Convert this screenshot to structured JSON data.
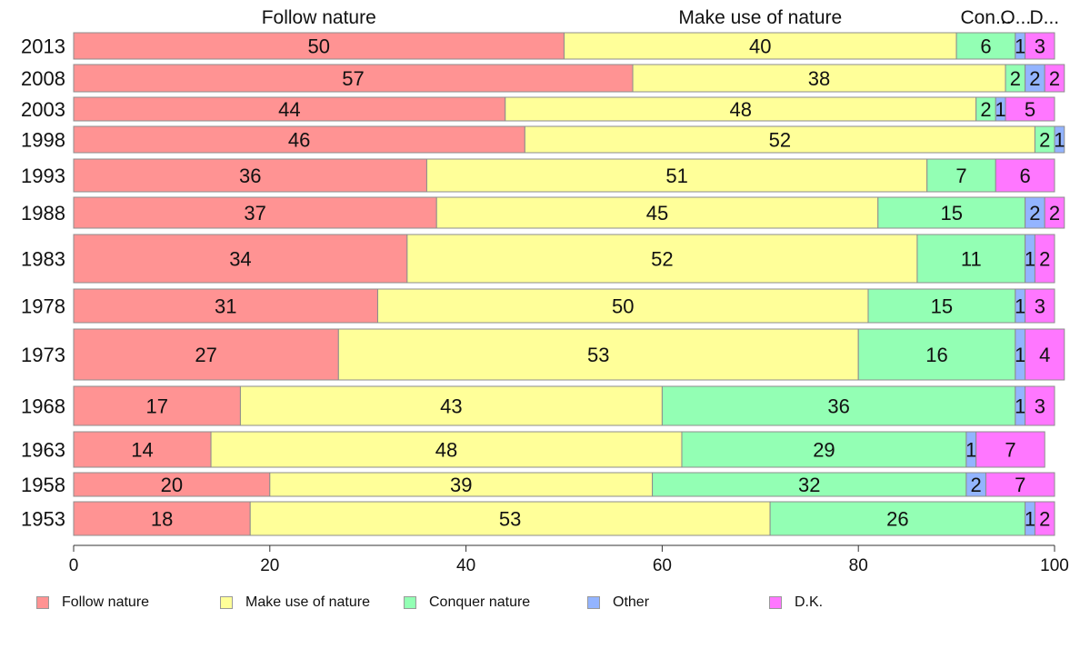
{
  "chart_data": {
    "type": "bar",
    "orientation": "horizontal",
    "stacked": true,
    "title": "",
    "xlabel": "",
    "ylabel": "",
    "xlim": [
      0,
      100
    ],
    "x_ticks": [
      0,
      20,
      40,
      60,
      80,
      100
    ],
    "grid": false,
    "legend_position": "bottom",
    "top_labels": [
      "Follow nature",
      "Make use of nature",
      "Con...",
      "O...",
      "D..."
    ],
    "categories": [
      "2013",
      "2008",
      "2003",
      "1998",
      "1993",
      "1988",
      "1983",
      "1978",
      "1973",
      "1968",
      "1963",
      "1958",
      "1953"
    ],
    "series": [
      {
        "name": "Follow nature",
        "color": "#ff9393",
        "values": [
          50,
          57,
          44,
          46,
          36,
          37,
          34,
          31,
          27,
          17,
          14,
          20,
          18
        ]
      },
      {
        "name": "Make use of nature",
        "color": "#ffff99",
        "values": [
          40,
          38,
          48,
          52,
          51,
          45,
          52,
          50,
          53,
          43,
          48,
          39,
          53
        ]
      },
      {
        "name": "Conquer nature",
        "color": "#93ffb4",
        "values": [
          6,
          2,
          2,
          2,
          7,
          15,
          11,
          15,
          16,
          36,
          29,
          32,
          26
        ]
      },
      {
        "name": "Other",
        "color": "#93b4ff",
        "values": [
          1,
          2,
          1,
          1,
          0,
          2,
          1,
          1,
          1,
          1,
          1,
          2,
          1
        ]
      },
      {
        "name": "D.K.",
        "color": "#ff77ff",
        "values": [
          3,
          2,
          5,
          0,
          6,
          2,
          2,
          3,
          4,
          3,
          7,
          7,
          2
        ]
      }
    ]
  }
}
